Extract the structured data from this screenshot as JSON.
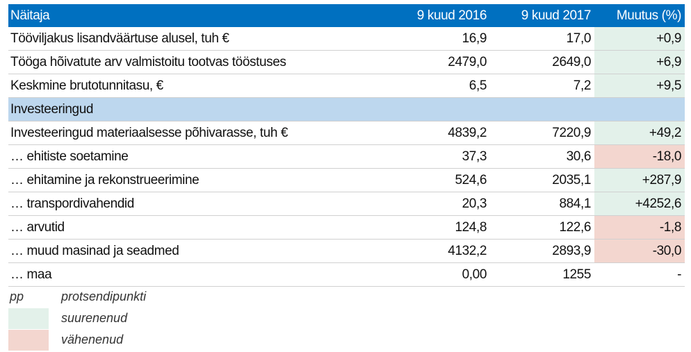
{
  "table": {
    "header": [
      "Näitaja",
      "9 kuud 2016",
      "9 kuud 2017",
      "Muutus (%)"
    ],
    "rows": [
      [
        "Tööviljakus lisandväärtuse alusel, tuh €",
        "16,9",
        "17,0",
        "+0,9"
      ],
      [
        "Tööga hõivatute arv valmistoitu tootvas tööstuses",
        "2479,0",
        "2649,0",
        "+6,9"
      ],
      [
        "Keskmine brutotunnitasu, €",
        "6,5",
        "7,2",
        "+9,5"
      ],
      [
        "Investeeringud"
      ],
      [
        "Investeeringud materiaalsesse põhivarasse, tuh €",
        "4839,2",
        "7220,9",
        "+49,2"
      ],
      [
        "… ehitiste soetamine",
        "37,3",
        "30,6",
        "-18,0"
      ],
      [
        "… ehitamine ja rekonstrueerimine",
        "524,6",
        "2035,1",
        "+287,9"
      ],
      [
        "… transpordivahendid",
        "20,3",
        "884,1",
        "+4252,6"
      ],
      [
        "… arvutid",
        "124,8",
        "122,6",
        "-1,8"
      ],
      [
        "… muud masinad ja seadmed",
        "4132,2",
        "2893,9",
        "-30,0"
      ],
      [
        "… maa",
        "0,00",
        "1255",
        "-"
      ]
    ]
  },
  "legend": {
    "abbreviation": [
      "pp",
      "protsendipunkti"
    ],
    "items": [
      {
        "label": "suurenenud",
        "color": "#e3f1ea"
      },
      {
        "label": "vähenenud",
        "color": "#f3d6cf"
      }
    ]
  }
}
